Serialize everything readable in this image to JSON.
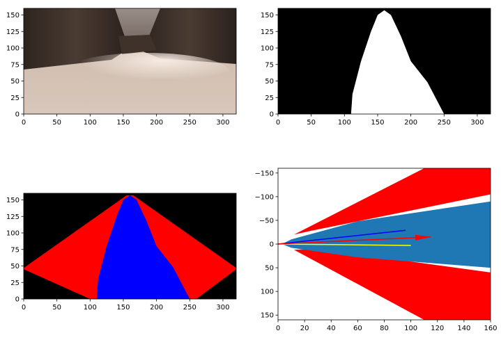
{
  "chart_data": [
    {
      "type": "image",
      "panel": "camera-image",
      "xlim": [
        0,
        320
      ],
      "ylim": [
        160,
        0
      ],
      "xticks": [
        0,
        50,
        100,
        150,
        200,
        250,
        300
      ],
      "yticks": [
        0,
        25,
        50,
        75,
        100,
        125,
        150
      ],
      "title": "",
      "xlabel": "",
      "ylabel": "",
      "colors": {
        "sky": "#8f8580",
        "rock": "#3a2e28",
        "ground": "#d8c4b6",
        "highlight": "#f3e6dc"
      }
    },
    {
      "type": "image",
      "panel": "threshold-mask",
      "xlim": [
        0,
        320
      ],
      "ylim": [
        160,
        0
      ],
      "xticks": [
        0,
        50,
        100,
        150,
        200,
        250,
        300
      ],
      "yticks": [
        0,
        25,
        50,
        75,
        100,
        125,
        150
      ],
      "title": "",
      "xlabel": "",
      "ylabel": "",
      "polygon": [
        [
          110,
          0
        ],
        [
          250,
          0
        ],
        [
          225,
          48
        ],
        [
          200,
          80
        ],
        [
          185,
          118
        ],
        [
          170,
          150
        ],
        [
          160,
          157
        ],
        [
          150,
          150
        ],
        [
          140,
          125
        ],
        [
          125,
          80
        ],
        [
          112,
          30
        ]
      ],
      "colors": {
        "background": "#000000",
        "navigable": "#ffffff"
      }
    },
    {
      "type": "image",
      "panel": "warped-overlay",
      "xlim": [
        0,
        320
      ],
      "ylim": [
        160,
        0
      ],
      "xticks": [
        0,
        50,
        100,
        150,
        200,
        250,
        300
      ],
      "yticks": [
        0,
        25,
        50,
        75,
        100,
        125,
        150
      ],
      "title": "",
      "xlabel": "",
      "ylabel": "",
      "fov_polygon": [
        [
          0,
          45
        ],
        [
          100,
          0
        ],
        [
          260,
          0
        ],
        [
          320,
          45
        ],
        [
          320,
          47
        ],
        [
          165,
          157
        ],
        [
          155,
          157
        ],
        [
          0,
          47
        ]
      ],
      "navigable_polygon": [
        [
          110,
          0
        ],
        [
          250,
          0
        ],
        [
          225,
          48
        ],
        [
          200,
          80
        ],
        [
          185,
          118
        ],
        [
          170,
          150
        ],
        [
          160,
          157
        ],
        [
          150,
          150
        ],
        [
          140,
          125
        ],
        [
          125,
          80
        ],
        [
          112,
          30
        ]
      ],
      "colors": {
        "background": "#000000",
        "fov": "#ff0000",
        "navigable": "#0000ff"
      }
    },
    {
      "type": "scatter",
      "panel": "rover-coords",
      "xlim": [
        0,
        160
      ],
      "ylim": [
        -160,
        160
      ],
      "xticks": [
        0,
        20,
        40,
        60,
        80,
        100,
        120,
        140,
        160
      ],
      "yticks": [
        -150,
        -100,
        -50,
        0,
        50,
        100,
        150
      ],
      "title": "",
      "xlabel": "",
      "ylabel": "",
      "regions": [
        {
          "fill": "#ff0000",
          "points": [
            [
              12,
              12
            ],
            [
              110,
              160
            ],
            [
              160,
              160
            ],
            [
              160,
              60
            ],
            [
              30,
              10
            ]
          ]
        },
        {
          "fill": "#ff0000",
          "points": [
            [
              25,
              -28
            ],
            [
              160,
              -105
            ],
            [
              160,
              -160
            ],
            [
              110,
              -160
            ],
            [
              12,
              -20
            ]
          ]
        },
        {
          "fill": "#1f77b4",
          "points": [
            [
              3,
              0
            ],
            [
              10,
              8
            ],
            [
              60,
              28
            ],
            [
              160,
              50
            ],
            [
              160,
              -90
            ],
            [
              60,
              -48
            ],
            [
              10,
              -10
            ]
          ]
        }
      ],
      "arrows": [
        {
          "color": "#ffff00",
          "x": [
            0,
            100
          ],
          "y": [
            0,
            3
          ]
        },
        {
          "color": "#0000ff",
          "x": [
            0,
            96
          ],
          "y": [
            0,
            -29
          ]
        },
        {
          "color": "#ff0000",
          "x": [
            0,
            115
          ],
          "y": [
            0,
            -15
          ]
        }
      ]
    }
  ]
}
